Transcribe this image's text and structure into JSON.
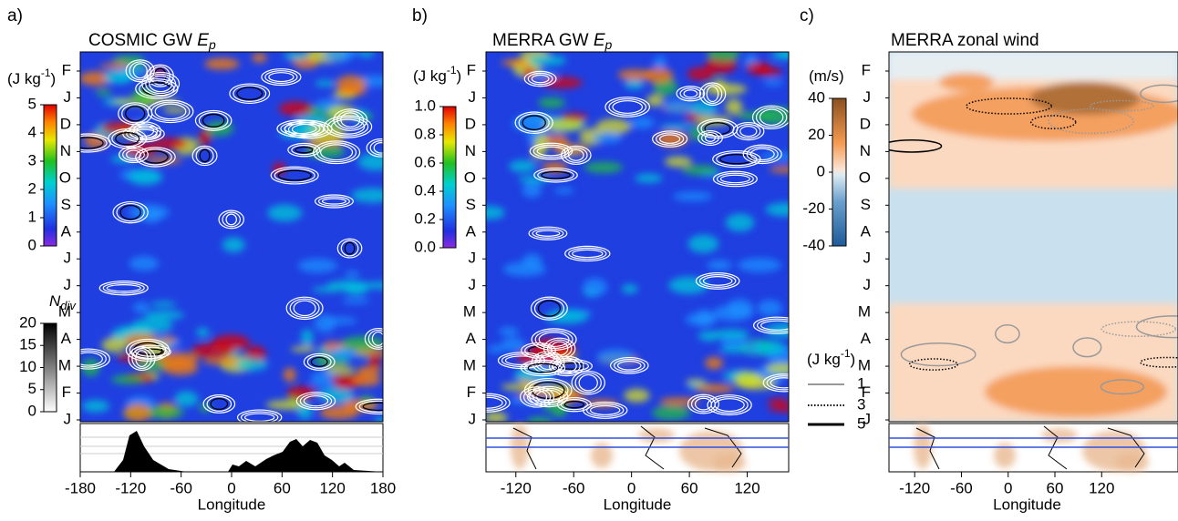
{
  "panels": [
    {
      "label": "a)",
      "title": "COSMIC GW ",
      "title_var": "E",
      "title_sub": "p",
      "months": [
        "J",
        "F",
        "M",
        "A",
        "M",
        "J",
        "J",
        "A",
        "S",
        "O",
        "N",
        "D",
        "J",
        "F"
      ],
      "xlim": [
        -180,
        180
      ],
      "xticks": [
        -180,
        -120,
        -60,
        0,
        60,
        120,
        180
      ],
      "xlabel": "Longitude",
      "colorbar": {
        "unit": "(J kg",
        "unit_sup": "-1",
        "unit_end": ")",
        "lim": [
          0,
          5
        ],
        "ticks": [
          0,
          1,
          2,
          3,
          4,
          5
        ]
      },
      "colorbar2": {
        "label": "N",
        "label_sub": "div",
        "lim": [
          0,
          20
        ],
        "ticks": [
          0,
          5,
          10,
          15,
          20
        ]
      }
    },
    {
      "label": "b)",
      "title": "MERRA GW ",
      "title_var": "E",
      "title_sub": "p",
      "months": [
        "J",
        "F",
        "M",
        "A",
        "M",
        "J",
        "J",
        "A",
        "S",
        "O",
        "N",
        "D",
        "J",
        "F"
      ],
      "xlim": [
        -151,
        163
      ],
      "xticks": [
        -120,
        -60,
        0,
        60,
        120
      ],
      "xlabel": "Longitude",
      "colorbar": {
        "unit": "(J kg",
        "unit_sup": "-1",
        "unit_end": ")",
        "lim": [
          0,
          1
        ],
        "ticks": [
          {
            "value": 0,
            "label": "0.0"
          },
          {
            "value": 0.2,
            "label": "0.2"
          },
          {
            "value": 0.4,
            "label": "0.4"
          },
          {
            "value": 0.6,
            "label": "0.6"
          },
          {
            "value": 0.8,
            "label": "0.8"
          },
          {
            "value": 1,
            "label": "1.0"
          }
        ]
      }
    },
    {
      "label": "c)",
      "title": "MERRA zonal wind",
      "months": [
        "J",
        "F",
        "M",
        "A",
        "M",
        "J",
        "J",
        "A",
        "S",
        "O",
        "N",
        "D",
        "J",
        "F"
      ],
      "xlim": [
        -153,
        218
      ],
      "xticks": [
        -120,
        -60,
        0,
        60,
        120
      ],
      "xlabel": "Longitude",
      "colorbar": {
        "unit": "(m/s)",
        "lim": [
          -40,
          40
        ],
        "ticks": [
          -40,
          -20,
          0,
          20,
          40
        ]
      },
      "legend": {
        "unit": "(J kg",
        "unit_sup": "-1",
        "unit_end": ")",
        "entries": [
          "1",
          "3",
          "5"
        ]
      }
    }
  ]
}
